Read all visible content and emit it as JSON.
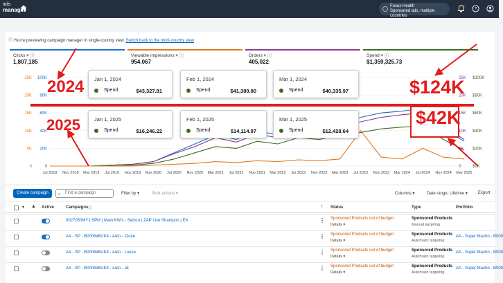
{
  "topbar": {
    "logo_small": "ads",
    "logo_big": "manager",
    "focus_title": "Focus Health",
    "focus_subtitle": "Sponsored ads, multiple countries"
  },
  "notice": {
    "text": "You're previewing campaign manager in single-country view.",
    "link": "Switch back to the multi-country view"
  },
  "metrics": [
    {
      "label": "Clicks",
      "value": "1,807,185",
      "color": "#1b6ec2"
    },
    {
      "label": "Viewable impressions",
      "value": "954,067",
      "color": "#e07b1a"
    },
    {
      "label": "Orders",
      "value": "405,022",
      "color": "#8a3c8f"
    },
    {
      "label": "Spend",
      "value": "$1,359,325.73",
      "color": "#3b6b21"
    }
  ],
  "tooltips_2024": [
    {
      "date": "Jan 1, 2024",
      "label": "Spend",
      "value": "$43,327.81"
    },
    {
      "date": "Feb 1, 2024",
      "label": "Spend",
      "value": "$41,380.80"
    },
    {
      "date": "Mar 1, 2024",
      "label": "Spend",
      "value": "$40,335.97"
    }
  ],
  "tooltips_2025": [
    {
      "date": "Jan 1, 2025",
      "label": "Spend",
      "value": "$16,246.22"
    },
    {
      "date": "Feb 1, 2025",
      "label": "Spend",
      "value": "$14,114.87"
    },
    {
      "date": "Mar 1, 2025",
      "label": "Spend",
      "value": "$12,428.64"
    }
  ],
  "annotations": {
    "y2024": "2024",
    "y2025": "2025",
    "v124": "$124K",
    "v42": "$42K"
  },
  "chart_data": {
    "type": "line",
    "x": [
      "Jul 2018",
      "Nov 2018",
      "Mar 2019",
      "Jul 2019",
      "Nov 2019",
      "Mar 2020",
      "Jul 2020",
      "Nov 2020",
      "Mar 2021",
      "Jul 2021",
      "Nov 2021",
      "Mar 2022",
      "Jul 2022",
      "Nov 2022",
      "Mar 2023",
      "Jul 2023",
      "Nov 2023",
      "Mar 2024",
      "Jul 2024",
      "Nov 2024",
      "Mar 2025"
    ],
    "y_axis_left_orange": [
      "0",
      "5K",
      "10K",
      "15K",
      "20K",
      "25K"
    ],
    "y_axis_left_blue": [
      "0",
      "20K",
      "40K",
      "60K",
      "80K",
      "100K"
    ],
    "y_axis_right_purple": [
      "0",
      "5K",
      "10K",
      "15K",
      "20K",
      "25K"
    ],
    "y_axis_right_green": [
      "$0K",
      "$20K",
      "$40K",
      "$60K",
      "$80K",
      "$100K"
    ],
    "series": [
      {
        "color": "#1b6ec2",
        "values": [
          0,
          0,
          0,
          1,
          2,
          5,
          15,
          25,
          35,
          30,
          40,
          35,
          45,
          42,
          48,
          55,
          60,
          62,
          65,
          45,
          30
        ]
      },
      {
        "color": "#8a3c8f",
        "values": [
          0,
          0,
          0,
          1,
          2,
          5,
          14,
          22,
          32,
          27,
          36,
          32,
          40,
          38,
          44,
          50,
          55,
          58,
          60,
          42,
          28
        ]
      },
      {
        "color": "#3b6b21",
        "values": [
          0,
          0,
          0,
          1,
          1,
          3,
          8,
          15,
          22,
          20,
          28,
          25,
          32,
          30,
          35,
          38,
          42,
          44,
          45,
          30,
          18
        ]
      },
      {
        "color": "#e07b1a",
        "values": [
          0,
          0,
          0,
          0,
          0,
          1,
          2,
          3,
          5,
          4,
          6,
          5,
          7,
          6,
          8,
          40,
          10,
          8,
          20,
          10,
          8
        ]
      }
    ]
  },
  "toolbar": {
    "create": "Create campaign",
    "search_placeholder": "Find a campaign",
    "filter": "Filter by",
    "bulk": "Bulk actions",
    "columns": "Columns",
    "date_range": "Date range: Lifetime",
    "export": "Export"
  },
  "table": {
    "headers": {
      "active": "Active",
      "campaigns": "Campaigns",
      "status": "Status",
      "type": "Type",
      "portfolio": "Portfolio"
    },
    "rows": [
      {
        "name": "0027050MY | SPM | Main KW's - Selozo | ZAP Lice Shampoo | EX",
        "on": true,
        "status": "Sponsored Products out of budget",
        "details": "Details",
        "type": "Sponsored Products",
        "targeting": "Manual targeting",
        "portfolio": ""
      },
      {
        "name": "AA - SP - B000646UK4 - Auto - Close",
        "on": true,
        "status": "Sponsored Products out of budget",
        "details": "Details",
        "type": "Sponsored Products",
        "targeting": "Automatic targeting",
        "portfolio": "AA - Super Macho - B000"
      },
      {
        "name": "AA - SP - B000646UK4 - Auto - Loose",
        "on": false,
        "status": "Sponsored Products out of budget",
        "details": "Details",
        "type": "Sponsored Products",
        "targeting": "Automatic targeting",
        "portfolio": "AA - Super Macho - B000"
      },
      {
        "name": "AA - SP - B000646UK4 - Auto - all",
        "on": false,
        "status": "Sponsored Products out of budget",
        "details": "Details",
        "type": "Sponsored Products",
        "targeting": "Automatic targeting",
        "portfolio": "AA - Super Macho - B000"
      }
    ]
  }
}
